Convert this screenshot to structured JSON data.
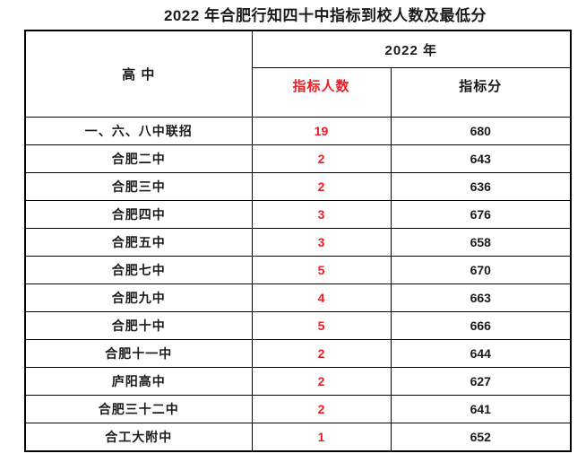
{
  "title": "2022 年合肥行知四十中指标到校人数及最低分",
  "colors": {
    "quota_red": "#ee1c24",
    "text_black": "#1a1a1a",
    "border_black": "#000000",
    "background": "#ffffff"
  },
  "table_header": {
    "school_col": "高 中",
    "year_group": "2022 年",
    "quota_col": "指标人数",
    "score_col": "指标分"
  },
  "chart_data": {
    "type": "table",
    "title": "2022 年合肥行知四十中指标到校人数及最低分",
    "columns": [
      "高 中",
      "指标人数",
      "指标分"
    ],
    "column_group": {
      "label": "2022 年",
      "spans": [
        "指标人数",
        "指标分"
      ]
    },
    "rows": [
      [
        "一、六、八中联招",
        "19",
        "680"
      ],
      [
        "合肥二中",
        "2",
        "643"
      ],
      [
        "合肥三中",
        "2",
        "636"
      ],
      [
        "合肥四中",
        "3",
        "676"
      ],
      [
        "合肥五中",
        "3",
        "658"
      ],
      [
        "合肥七中",
        "5",
        "670"
      ],
      [
        "合肥九中",
        "4",
        "663"
      ],
      [
        "合肥十中",
        "5",
        "666"
      ],
      [
        "合肥十一中",
        "2",
        "644"
      ],
      [
        "庐阳高中",
        "2",
        "627"
      ],
      [
        "合肥三十二中",
        "2",
        "641"
      ],
      [
        "合工大附中",
        "1",
        "652"
      ]
    ]
  }
}
